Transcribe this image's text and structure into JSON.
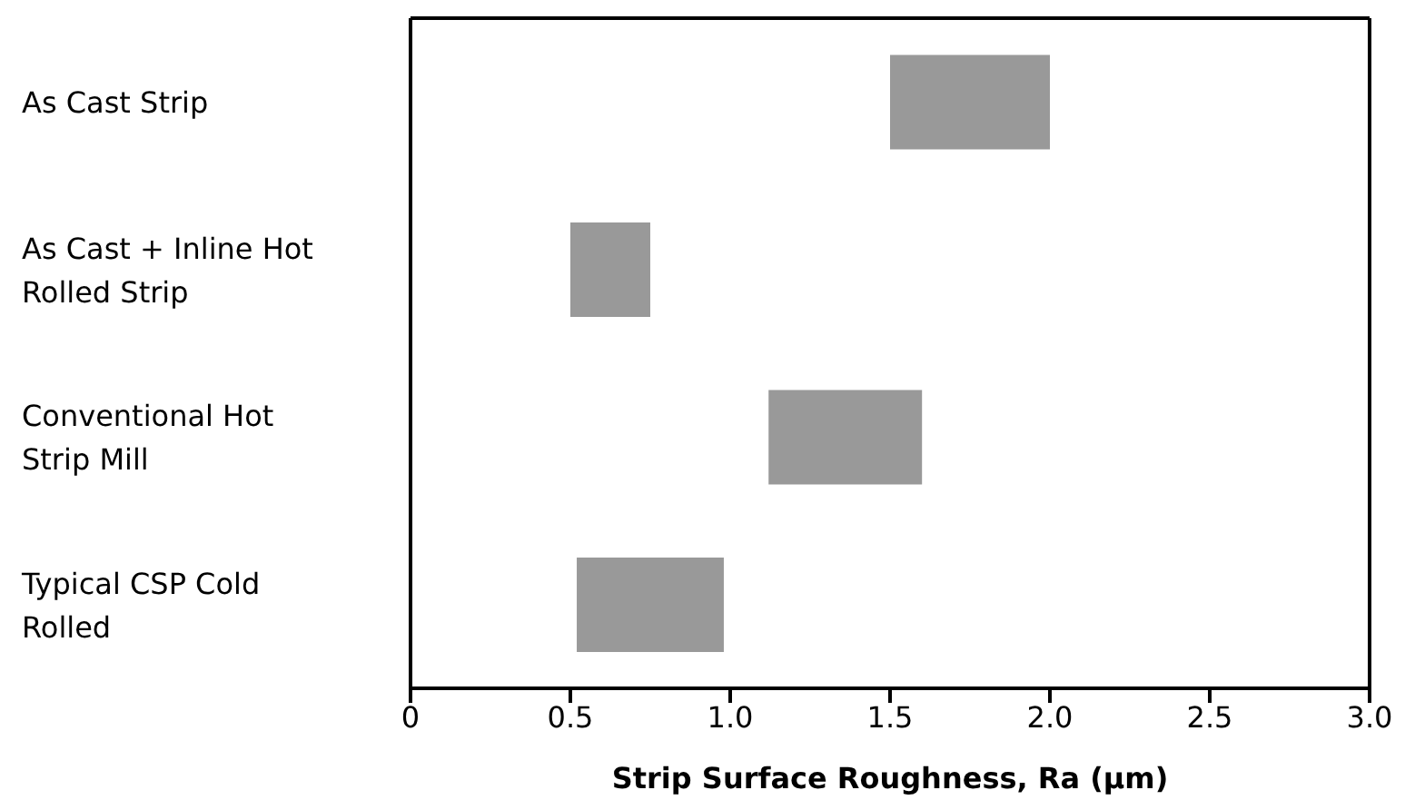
{
  "chart_data": {
    "type": "bar",
    "orientation": "horizontal",
    "xlabel": "Strip Surface Roughness, Ra (µm)",
    "categories": [
      "As Cast Strip",
      "As Cast + Inline Hot Rolled Strip",
      "Conventional Hot Strip Mill",
      "Typical CSP Cold Rolled"
    ],
    "base": [
      1.5,
      0.5,
      1.12,
      0.52
    ],
    "values": [
      0.5,
      0.25,
      0.48,
      0.46
    ],
    "color": "#999999",
    "xlim": [
      0,
      3
    ],
    "xticks": [
      0,
      0.5,
      {
        "value": 1,
        "label": "1.0"
      },
      1.5,
      {
        "value": 2,
        "label": "2.0"
      },
      2.5,
      {
        "value": 3,
        "label": "3.0"
      }
    ],
    "grid": false,
    "legend": false
  }
}
